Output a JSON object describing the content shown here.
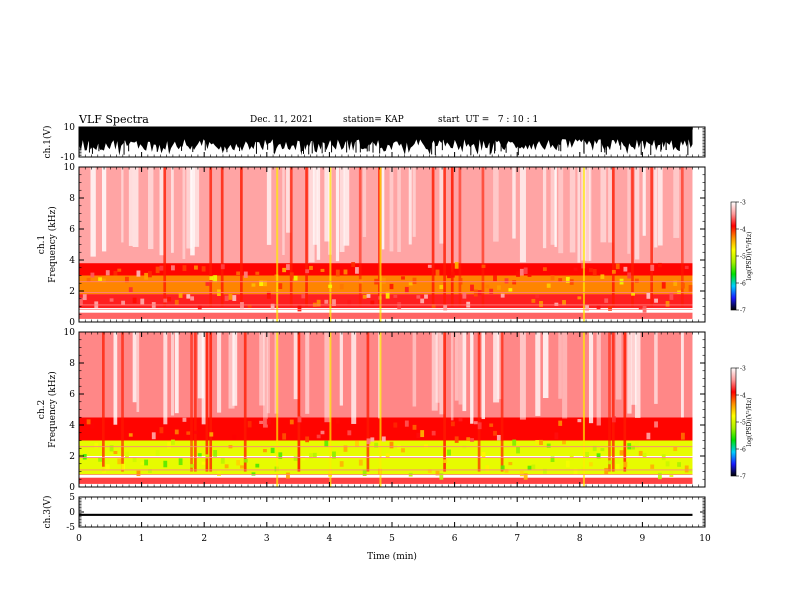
{
  "header": {
    "title": "VLF Spectra",
    "date": "Dec. 11, 2021",
    "station": "station= KAP",
    "start": "start  UT =   7 : 10 : 1"
  },
  "colorbar": {
    "label": "log(PSD)(V²/Hz)",
    "ticks": [
      "-3",
      "-4",
      "-5",
      "-6",
      "-7"
    ],
    "stops": [
      "#000000",
      "#1a1aff",
      "#00cfff",
      "#00e000",
      "#a8f000",
      "#ffff00",
      "#ff9000",
      "#ff0000",
      "#ff9a9a",
      "#ffffff"
    ]
  },
  "chart_data": [
    {
      "type": "line",
      "panel": "ch1-waveform",
      "ylabel": "ch.1(V)",
      "ylim": [
        -10,
        10
      ],
      "yticks": [
        "10",
        "-10"
      ],
      "xlim": [
        0,
        10
      ],
      "description_values": {
        "amplitude_min": -6,
        "amplitude_max": 10,
        "data_end_min": 9.8
      }
    },
    {
      "type": "heatmap",
      "panel": "ch1-spectrogram",
      "ylabel": "ch.1\nFrequency (kHz)",
      "ylim": [
        0,
        10
      ],
      "yticks": [
        "0",
        "2",
        "4",
        "6",
        "8",
        "10"
      ],
      "xlim": [
        0,
        10
      ],
      "bands": [
        {
          "from_khz": 0.2,
          "to_khz": 0.6,
          "log_psd": -3.6
        },
        {
          "from_khz": 0.9,
          "to_khz": 1.8,
          "log_psd": -3.8
        },
        {
          "from_khz": 1.8,
          "to_khz": 3.0,
          "log_psd": -4.3
        },
        {
          "from_khz": 3.0,
          "to_khz": 3.8,
          "log_psd": -3.9
        },
        {
          "from_khz": 3.8,
          "to_khz": 10.0,
          "log_psd": -3.4
        }
      ]
    },
    {
      "type": "heatmap",
      "panel": "ch2-spectrogram",
      "ylabel": "ch.2\nFrequency (kHz)",
      "ylim": [
        0,
        10
      ],
      "yticks": [
        "0",
        "2",
        "4",
        "6",
        "8",
        "10"
      ],
      "xlim": [
        0,
        10
      ],
      "bands": [
        {
          "from_khz": 0.2,
          "to_khz": 0.6,
          "log_psd": -3.7
        },
        {
          "from_khz": 0.8,
          "to_khz": 1.9,
          "log_psd": -4.9
        },
        {
          "from_khz": 2.0,
          "to_khz": 3.0,
          "log_psd": -4.9
        },
        {
          "from_khz": 3.0,
          "to_khz": 4.5,
          "log_psd": -3.9
        },
        {
          "from_khz": 4.5,
          "to_khz": 10.0,
          "log_psd": -3.5
        }
      ]
    },
    {
      "type": "line",
      "panel": "ch3-waveform",
      "ylabel": "ch.3(V)",
      "ylim": [
        -5,
        5
      ],
      "yticks": [
        "5",
        "0",
        "-5"
      ],
      "xlim": [
        0,
        10
      ],
      "xlabel": "Time (min)",
      "xticks": [
        "0",
        "1",
        "2",
        "3",
        "4",
        "5",
        "6",
        "7",
        "8",
        "9",
        "10"
      ],
      "description_values": {
        "amplitude_min": -1.3,
        "amplitude_max": -0.6,
        "data_end_min": 9.8
      }
    }
  ]
}
